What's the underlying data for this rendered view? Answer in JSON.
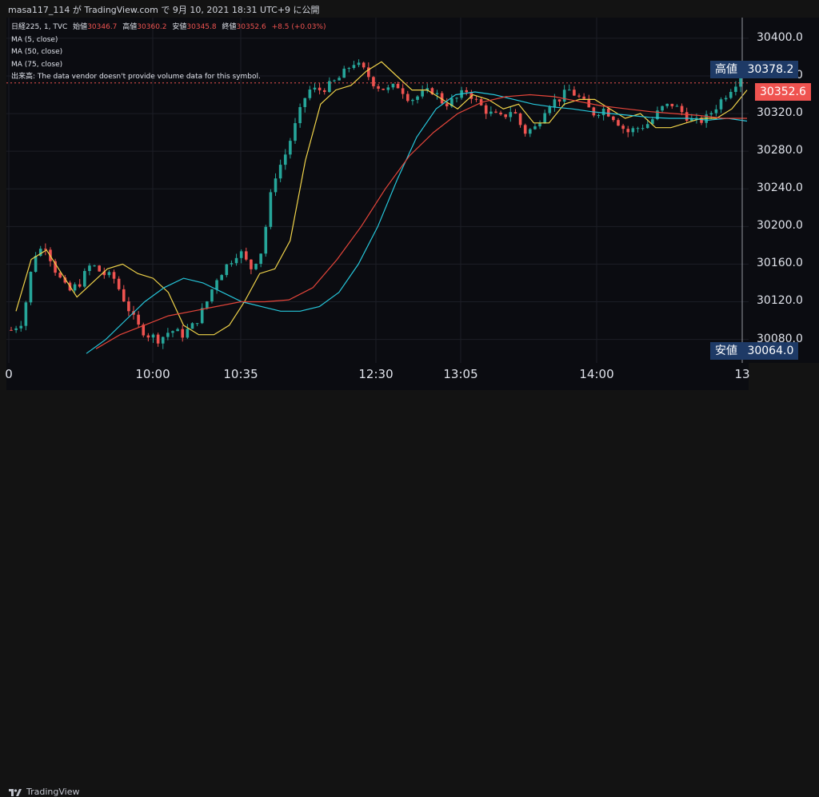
{
  "header": {
    "caption": "masa117_114 が TradingView.com で 9月 10, 2021 18:31 UTC+9 に公開"
  },
  "legend": {
    "symbol": "日経225, 1, TVC",
    "open_label": "始値",
    "open_value": "30346.7",
    "high_label": "高値",
    "high_value": "30360.2",
    "low_label": "安値",
    "low_value": "30345.8",
    "close_label": "終値",
    "close_value": "30352.6",
    "change": "+8.5 (+0.03%)",
    "ma_rows": [
      "MA (5, close)",
      "MA (50, close)",
      "MA (75, close)"
    ],
    "volume_note": "出来高: The data vendor doesn't provide volume data for this symbol."
  },
  "price_labels": {
    "high_label": "高値",
    "high_value": "30378.2",
    "current_value": "30352.6",
    "low_label": "安値",
    "low_value": "30064.0",
    "hidden_tick": "30360.0"
  },
  "footer": {
    "brand": "TradingView"
  },
  "colors": {
    "up": "#26a69a",
    "down": "#ef5350",
    "ma5": "#f0d34a",
    "ma50": "#26c6da",
    "ma75": "#e5453a",
    "label_bg": "#1e3a66",
    "current_bg": "#ef5350"
  },
  "chart_data": {
    "type": "candlestick",
    "title": "日経225, 1, TVC",
    "x_tick_labels": [
      "0",
      "10:00",
      "10:35",
      "12:30",
      "13:05",
      "14:00",
      "13"
    ],
    "y_ticks": [
      30080,
      30120,
      30160,
      30200,
      30240,
      30280,
      30320,
      30360,
      30400
    ],
    "ylim": [
      30055,
      30422
    ],
    "grid": true,
    "series": [
      {
        "name": "MA (5, close)",
        "type": "line",
        "values": [
          30110,
          30165,
          30175,
          30150,
          30125,
          30140,
          30155,
          30160,
          30150,
          30145,
          30130,
          30095,
          30085,
          30085,
          30095,
          30120,
          30150,
          30155,
          30185,
          30270,
          30330,
          30345,
          30350,
          30365,
          30375,
          30360,
          30345,
          30345,
          30335,
          30325,
          30340,
          30335,
          30325,
          30330,
          30310,
          30310,
          30330,
          30335,
          30335,
          30325,
          30315,
          30320,
          30305,
          30305,
          30310,
          30315,
          30315,
          30325,
          30345
        ]
      },
      {
        "name": "MA (50, close)",
        "type": "line",
        "values": [
          30065,
          30080,
          30100,
          30120,
          30135,
          30145,
          30140,
          30130,
          30120,
          30115,
          30110,
          30110,
          30115,
          30130,
          30160,
          30200,
          30250,
          30295,
          30325,
          30340,
          30343,
          30340,
          30335,
          30330,
          30327,
          30325,
          30322,
          30320,
          30318,
          30316,
          30315,
          30315,
          30313,
          30315,
          30312
        ]
      },
      {
        "name": "MA (75, close)",
        "type": "line",
        "values": [
          30070,
          30085,
          30095,
          30105,
          30110,
          30115,
          30120,
          30120,
          30122,
          30135,
          30165,
          30200,
          30240,
          30275,
          30300,
          30320,
          30332,
          30338,
          30340,
          30338,
          30333,
          30328,
          30325,
          30322,
          30320,
          30318,
          30315,
          30315
        ]
      }
    ],
    "candles_close_path": [
      30090,
      30100,
      30170,
      30180,
      30150,
      30130,
      30140,
      30160,
      30150,
      30145,
      30120,
      30095,
      30085,
      30080,
      30090,
      30085,
      30095,
      30115,
      30145,
      30160,
      30175,
      30155,
      30175,
      30250,
      30275,
      30310,
      30345,
      30345,
      30350,
      30360,
      30375,
      30365,
      30350,
      30345,
      30350,
      30335,
      30340,
      30345,
      30330,
      30335,
      30345,
      30330,
      30320,
      30315,
      30325,
      30300,
      30305,
      30330,
      30335,
      30345,
      30335,
      30320,
      30325,
      30315,
      30300,
      30305,
      30310,
      30325,
      30330,
      30320,
      30310,
      30315,
      30330,
      30345,
      30360
    ]
  }
}
